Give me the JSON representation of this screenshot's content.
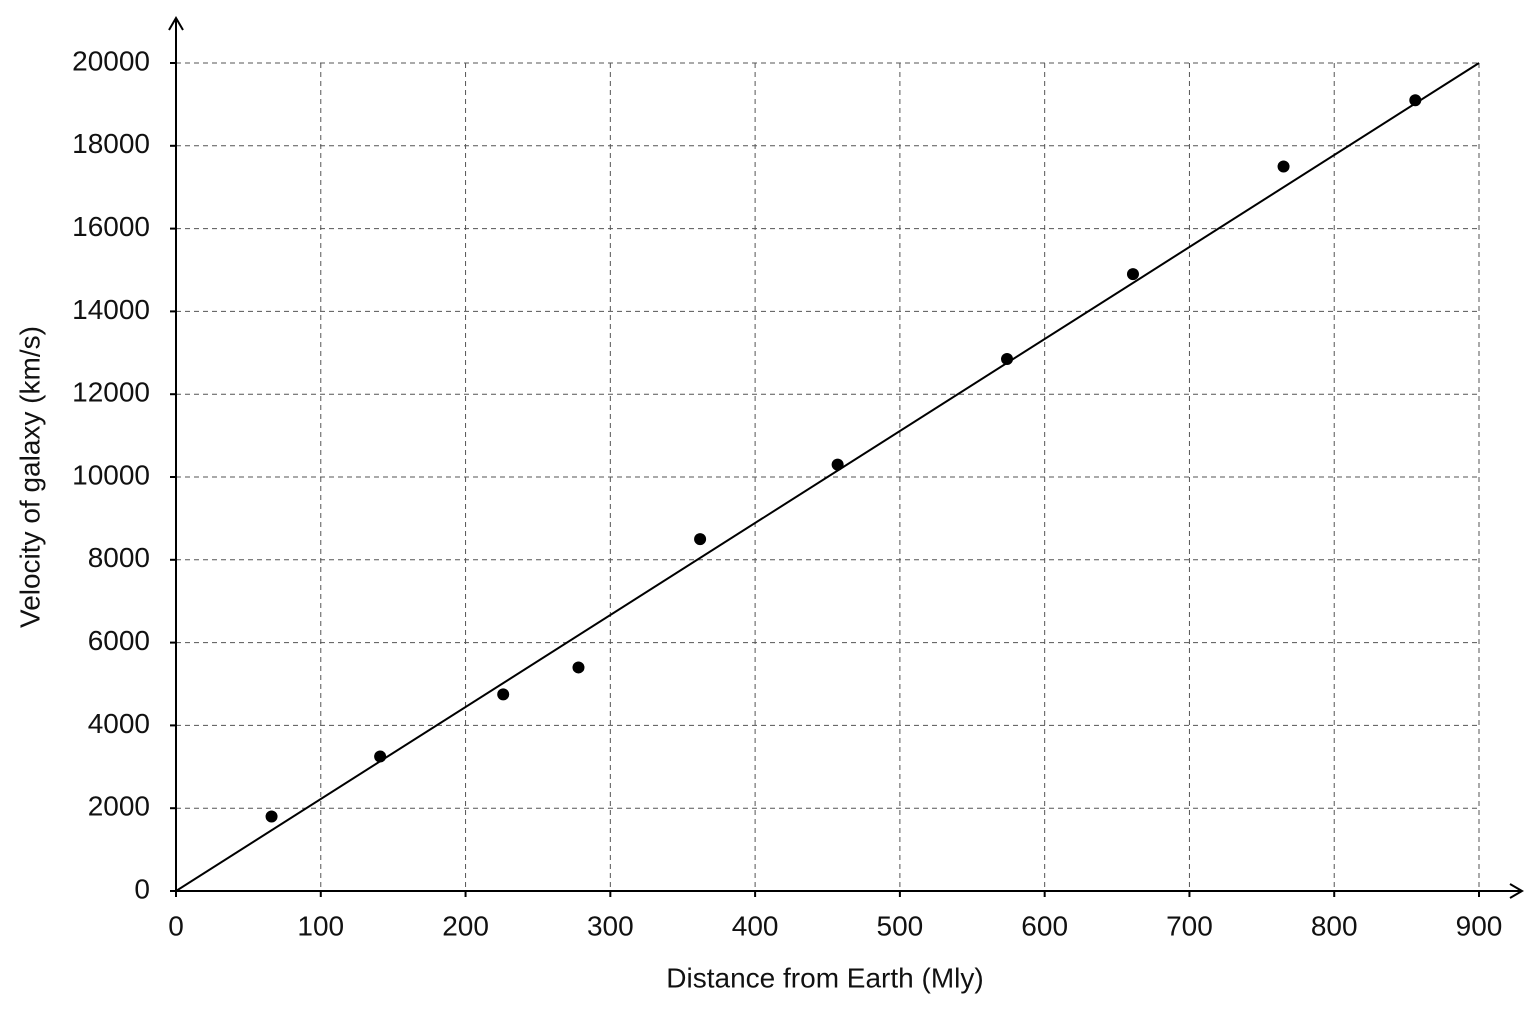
{
  "chart_data": {
    "type": "scatter",
    "x_label": "Distance from Earth (Mly)",
    "y_label": "Velocity of galaxy (km/s)",
    "x": [
      66,
      141,
      226,
      278,
      362,
      457,
      574,
      661,
      765,
      856
    ],
    "values": [
      1800,
      3250,
      4750,
      5400,
      8500,
      10300,
      12850,
      14900,
      17500,
      19100
    ],
    "color": "#000000",
    "trend_line": {
      "x": [
        0,
        900
      ],
      "values": [
        0,
        20000
      ],
      "color": "#000000"
    },
    "xlim": [
      0,
      900
    ],
    "xticks": [
      0,
      100,
      200,
      300,
      400,
      500,
      600,
      700,
      800,
      900
    ],
    "ylim": [
      0,
      20000
    ],
    "yticks": [
      0,
      2000,
      4000,
      6000,
      8000,
      10000,
      12000,
      14000,
      16000,
      18000,
      20000
    ],
    "grid": true
  }
}
